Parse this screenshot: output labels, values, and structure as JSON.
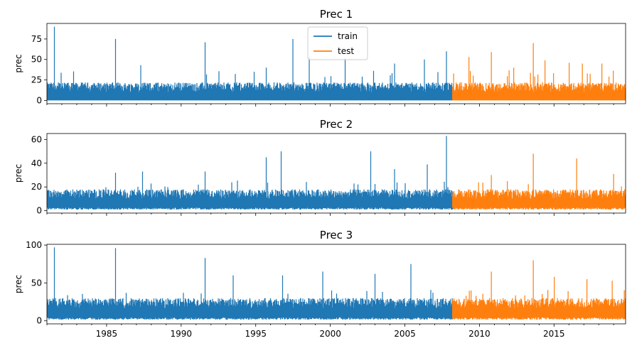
{
  "chart_data": [
    {
      "type": "line",
      "title": "Prec 1",
      "ylabel": "prec",
      "xlabel": "",
      "xlim": [
        1981.0,
        2019.8
      ],
      "ylim": [
        -4,
        94
      ],
      "yticks": [
        0,
        25,
        50,
        75
      ],
      "xticks": [
        1985,
        1990,
        1995,
        2000,
        2005,
        2010,
        2015
      ],
      "xtick_labels_visible": false,
      "legend": {
        "position": "upper-center",
        "entries": [
          "train",
          "test"
        ]
      },
      "series": [
        {
          "name": "train",
          "color": "#1f77b4",
          "x_range": [
            1981.0,
            2008.2
          ],
          "baseline": 0,
          "typical_peak": 22,
          "spikes": [
            [
              1981.5,
              90
            ],
            [
              1985.6,
              75
            ],
            [
              1987.3,
              43
            ],
            [
              1991.6,
              71
            ],
            [
              1995.7,
              40
            ],
            [
              1997.5,
              75
            ],
            [
              1998.6,
              53
            ],
            [
              2001.0,
              52
            ],
            [
              2004.3,
              45
            ],
            [
              2006.3,
              50
            ],
            [
              2007.8,
              60
            ]
          ]
        },
        {
          "name": "test",
          "color": "#ff7f0e",
          "x_range": [
            2008.2,
            2019.8
          ],
          "baseline": 0,
          "typical_peak": 22,
          "spikes": [
            [
              2009.3,
              53
            ],
            [
              2010.8,
              59
            ],
            [
              2012.3,
              40
            ],
            [
              2013.6,
              70
            ],
            [
              2014.4,
              49
            ],
            [
              2016.0,
              46
            ],
            [
              2016.9,
              45
            ],
            [
              2018.2,
              45
            ]
          ]
        }
      ]
    },
    {
      "type": "line",
      "title": "Prec 2",
      "ylabel": "prec",
      "xlabel": "",
      "xlim": [
        1981.0,
        2019.8
      ],
      "ylim": [
        -2,
        65
      ],
      "yticks": [
        0,
        20,
        40,
        60
      ],
      "xticks": [
        1985,
        1990,
        1995,
        2000,
        2005,
        2010,
        2015
      ],
      "xtick_labels_visible": false,
      "series": [
        {
          "name": "train",
          "color": "#1f77b4",
          "x_range": [
            1981.0,
            2008.2
          ],
          "baseline": 3,
          "typical_peak": 15,
          "spikes": [
            [
              1985.6,
              32
            ],
            [
              1987.4,
              33
            ],
            [
              1991.6,
              33
            ],
            [
              1995.7,
              45
            ],
            [
              1996.7,
              50
            ],
            [
              2002.7,
              50
            ],
            [
              2004.3,
              35
            ],
            [
              2006.5,
              39
            ],
            [
              2007.8,
              63
            ]
          ]
        },
        {
          "name": "test",
          "color": "#ff7f0e",
          "x_range": [
            2008.2,
            2019.8
          ],
          "baseline": 3,
          "typical_peak": 15,
          "spikes": [
            [
              2010.8,
              30
            ],
            [
              2013.6,
              48
            ],
            [
              2016.5,
              44
            ],
            [
              2019.0,
              31
            ]
          ]
        }
      ]
    },
    {
      "type": "line",
      "title": "Prec 3",
      "ylabel": "prec",
      "xlabel": "",
      "xlim": [
        1981.0,
        2019.8
      ],
      "ylim": [
        -4,
        101
      ],
      "yticks": [
        0,
        50,
        100
      ],
      "xticks": [
        1985,
        1990,
        1995,
        2000,
        2005,
        2010,
        2015
      ],
      "xtick_labels_visible": true,
      "series": [
        {
          "name": "train",
          "color": "#1f77b4",
          "x_range": [
            1981.0,
            2008.2
          ],
          "baseline": 5,
          "typical_peak": 25,
          "spikes": [
            [
              1981.5,
              97
            ],
            [
              1985.6,
              96
            ],
            [
              1991.6,
              83
            ],
            [
              1993.5,
              60
            ],
            [
              1996.8,
              60
            ],
            [
              1999.5,
              65
            ],
            [
              2003.0,
              62
            ],
            [
              2005.4,
              75
            ]
          ]
        },
        {
          "name": "test",
          "color": "#ff7f0e",
          "x_range": [
            2008.2,
            2019.8
          ],
          "baseline": 5,
          "typical_peak": 25,
          "spikes": [
            [
              2010.8,
              65
            ],
            [
              2013.6,
              80
            ],
            [
              2015.0,
              58
            ],
            [
              2017.2,
              55
            ],
            [
              2018.9,
              53
            ]
          ]
        }
      ]
    }
  ]
}
